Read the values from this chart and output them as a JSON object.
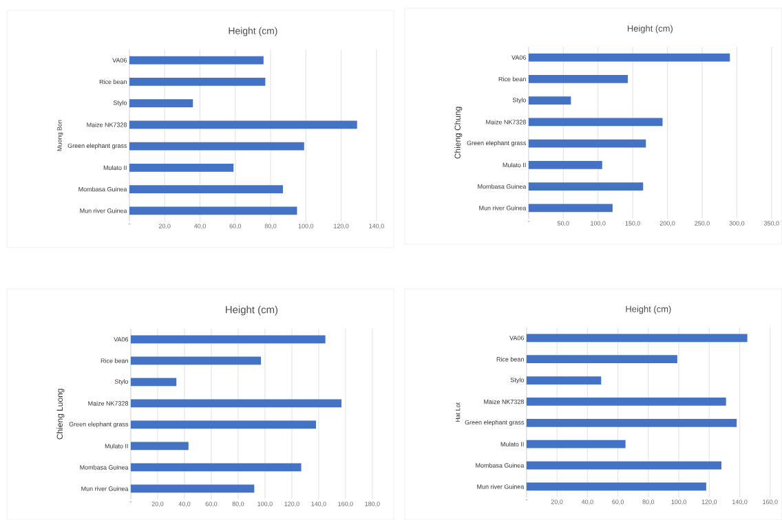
{
  "chart_data": [
    {
      "type": "bar",
      "orientation": "horizontal",
      "title": "Height (cm)",
      "ylabel": "Muong Bon",
      "categories": [
        "VA06",
        "Rice bean",
        "Stylo",
        "Maize NK7328",
        "Green elephant grass",
        "Mulato II",
        "Mombasa Guinea",
        "Mun river Guinea"
      ],
      "values": [
        76,
        77,
        36,
        129,
        99,
        59,
        87,
        95
      ],
      "color": "#4472c4",
      "xlim": [
        0,
        140
      ],
      "xticks": [
        {
          "value": 0,
          "label": "-"
        },
        {
          "value": 20,
          "label": "20,0"
        },
        {
          "value": 40,
          "label": "40,0"
        },
        {
          "value": 60,
          "label": "60,0"
        },
        {
          "value": 80,
          "label": "80,0"
        },
        {
          "value": 100,
          "label": "100,0"
        },
        {
          "value": 120,
          "label": "120,0"
        },
        {
          "value": 140,
          "label": "140,0"
        }
      ],
      "grid": "x"
    },
    {
      "type": "bar",
      "orientation": "horizontal",
      "title": "Height (cm)",
      "ylabel": "Chieng Chung",
      "categories": [
        "VA06",
        "Rice bean",
        "Stylo",
        "Maize NK7328",
        "Green elephant grass",
        "Mulato II",
        "Mombasa Guinea",
        "Mun river Guinea"
      ],
      "values": [
        290,
        143,
        61,
        193,
        169,
        106,
        165,
        121
      ],
      "color": "#4472c4",
      "xlim": [
        0,
        350
      ],
      "xticks": [
        {
          "value": 0,
          "label": "-"
        },
        {
          "value": 50,
          "label": "50,0"
        },
        {
          "value": 100,
          "label": "100,0"
        },
        {
          "value": 150,
          "label": "150,0"
        },
        {
          "value": 200,
          "label": "200,0"
        },
        {
          "value": 250,
          "label": "250,0"
        },
        {
          "value": 300,
          "label": "300,0"
        },
        {
          "value": 350,
          "label": "350,0"
        }
      ],
      "grid": "x"
    },
    {
      "type": "bar",
      "orientation": "horizontal",
      "title": "Height (cm)",
      "ylabel": "Chieng Luong",
      "categories": [
        "VA06",
        "Rice bean",
        "Stylo",
        "Maize NK7328",
        "Green elephant grass",
        "Mulato II",
        "Mombasa Guinea",
        "Mun river Guinea"
      ],
      "values": [
        145,
        97,
        34,
        157,
        138,
        43,
        127,
        92
      ],
      "color": "#4472c4",
      "xlim": [
        0,
        180
      ],
      "xticks": [
        {
          "value": 0,
          "label": "-"
        },
        {
          "value": 20,
          "label": "20,0"
        },
        {
          "value": 40,
          "label": "40,0"
        },
        {
          "value": 60,
          "label": "60,0"
        },
        {
          "value": 80,
          "label": "80,0"
        },
        {
          "value": 100,
          "label": "100,0"
        },
        {
          "value": 120,
          "label": "120,0"
        },
        {
          "value": 140,
          "label": "140,0"
        },
        {
          "value": 160,
          "label": "160,0"
        },
        {
          "value": 180,
          "label": "180,0"
        }
      ],
      "grid": "x"
    },
    {
      "type": "bar",
      "orientation": "horizontal",
      "title": "Height (cm)",
      "ylabel": "Hat Lot",
      "categories": [
        "VA06",
        "Rice bean",
        "Stylo",
        "Maize NK7328",
        "Green elephant grass",
        "Mulato II",
        "Mombasa Guinea",
        "Mun river Guinea"
      ],
      "values": [
        145,
        99,
        49,
        131,
        138,
        65,
        128,
        118
      ],
      "color": "#4472c4",
      "xlim": [
        0,
        160
      ],
      "xticks": [
        {
          "value": 0,
          "label": "-"
        },
        {
          "value": 20,
          "label": "20,0"
        },
        {
          "value": 40,
          "label": "40,0"
        },
        {
          "value": 60,
          "label": "60,0"
        },
        {
          "value": 80,
          "label": "80,0"
        },
        {
          "value": 100,
          "label": "100,0"
        },
        {
          "value": 120,
          "label": "120,0"
        },
        {
          "value": 140,
          "label": "140,0"
        },
        {
          "value": 160,
          "label": "160,0"
        }
      ],
      "grid": "x"
    }
  ]
}
